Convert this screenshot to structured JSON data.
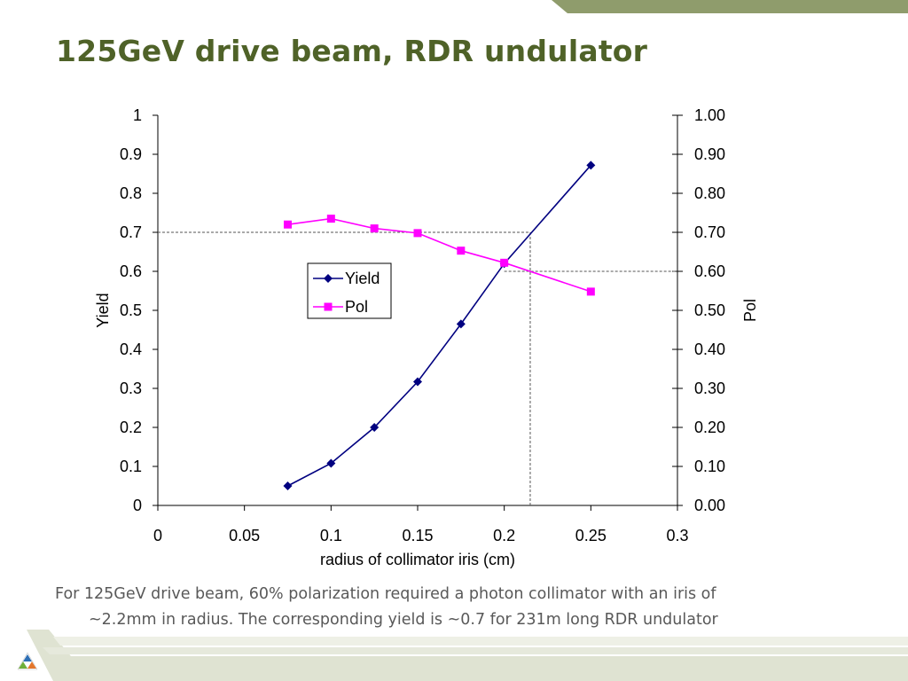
{
  "slide": {
    "title": "125GeV drive beam, RDR undulator",
    "caption_line1": "For 125GeV drive beam, 60% polarization required a photon collimator with an iris of",
    "caption_line2": "~2.2mm in radius.  The corresponding yield is ~0.7 for 231m long RDR undulator"
  },
  "colors": {
    "accent": "#8f9c6c",
    "title": "#4f6228",
    "yield": "#000080",
    "pol": "#ff00ff",
    "caption": "#595959"
  },
  "logo": {
    "icon": "colored-triangle-logo-icon"
  },
  "chart_data": {
    "type": "line",
    "xlabel": "radius of collimator iris (cm)",
    "ylabel": "Yield",
    "y2label": "Pol",
    "xlim": [
      0,
      0.3
    ],
    "ylim": [
      0,
      1
    ],
    "y2lim": [
      0,
      1
    ],
    "x_ticks": [
      "0",
      "0.05",
      "0.1",
      "0.15",
      "0.2",
      "0.25",
      "0.3"
    ],
    "y_ticks": [
      "0",
      "0.1",
      "0.2",
      "0.3",
      "0.4",
      "0.5",
      "0.6",
      "0.7",
      "0.8",
      "0.9",
      "1"
    ],
    "y2_ticks": [
      "0.00",
      "0.10",
      "0.20",
      "0.30",
      "0.40",
      "0.50",
      "0.60",
      "0.70",
      "0.80",
      "0.90",
      "1.00"
    ],
    "legend_position": "center-left",
    "grid": false,
    "series": [
      {
        "name": "Yield",
        "axis": "left",
        "marker": "diamond",
        "color": "#000080",
        "x": [
          0.075,
          0.1,
          0.125,
          0.15,
          0.175,
          0.2,
          0.25
        ],
        "y": [
          0.05,
          0.108,
          0.2,
          0.317,
          0.465,
          0.62,
          0.872
        ]
      },
      {
        "name": "Pol",
        "axis": "right",
        "marker": "square",
        "color": "#ff00ff",
        "x": [
          0.075,
          0.1,
          0.125,
          0.15,
          0.175,
          0.2,
          0.25
        ],
        "y": [
          0.72,
          0.735,
          0.71,
          0.698,
          0.653,
          0.622,
          0.548
        ]
      }
    ],
    "guides": [
      {
        "from": [
          0,
          0.7
        ],
        "to": [
          0.215,
          0.7
        ],
        "axis": "left"
      },
      {
        "from": [
          0.215,
          0.7
        ],
        "to": [
          0.215,
          0
        ],
        "axis": "left"
      },
      {
        "from": [
          0.2,
          0.6
        ],
        "to": [
          0.3,
          0.6
        ],
        "axis": "right"
      }
    ]
  }
}
